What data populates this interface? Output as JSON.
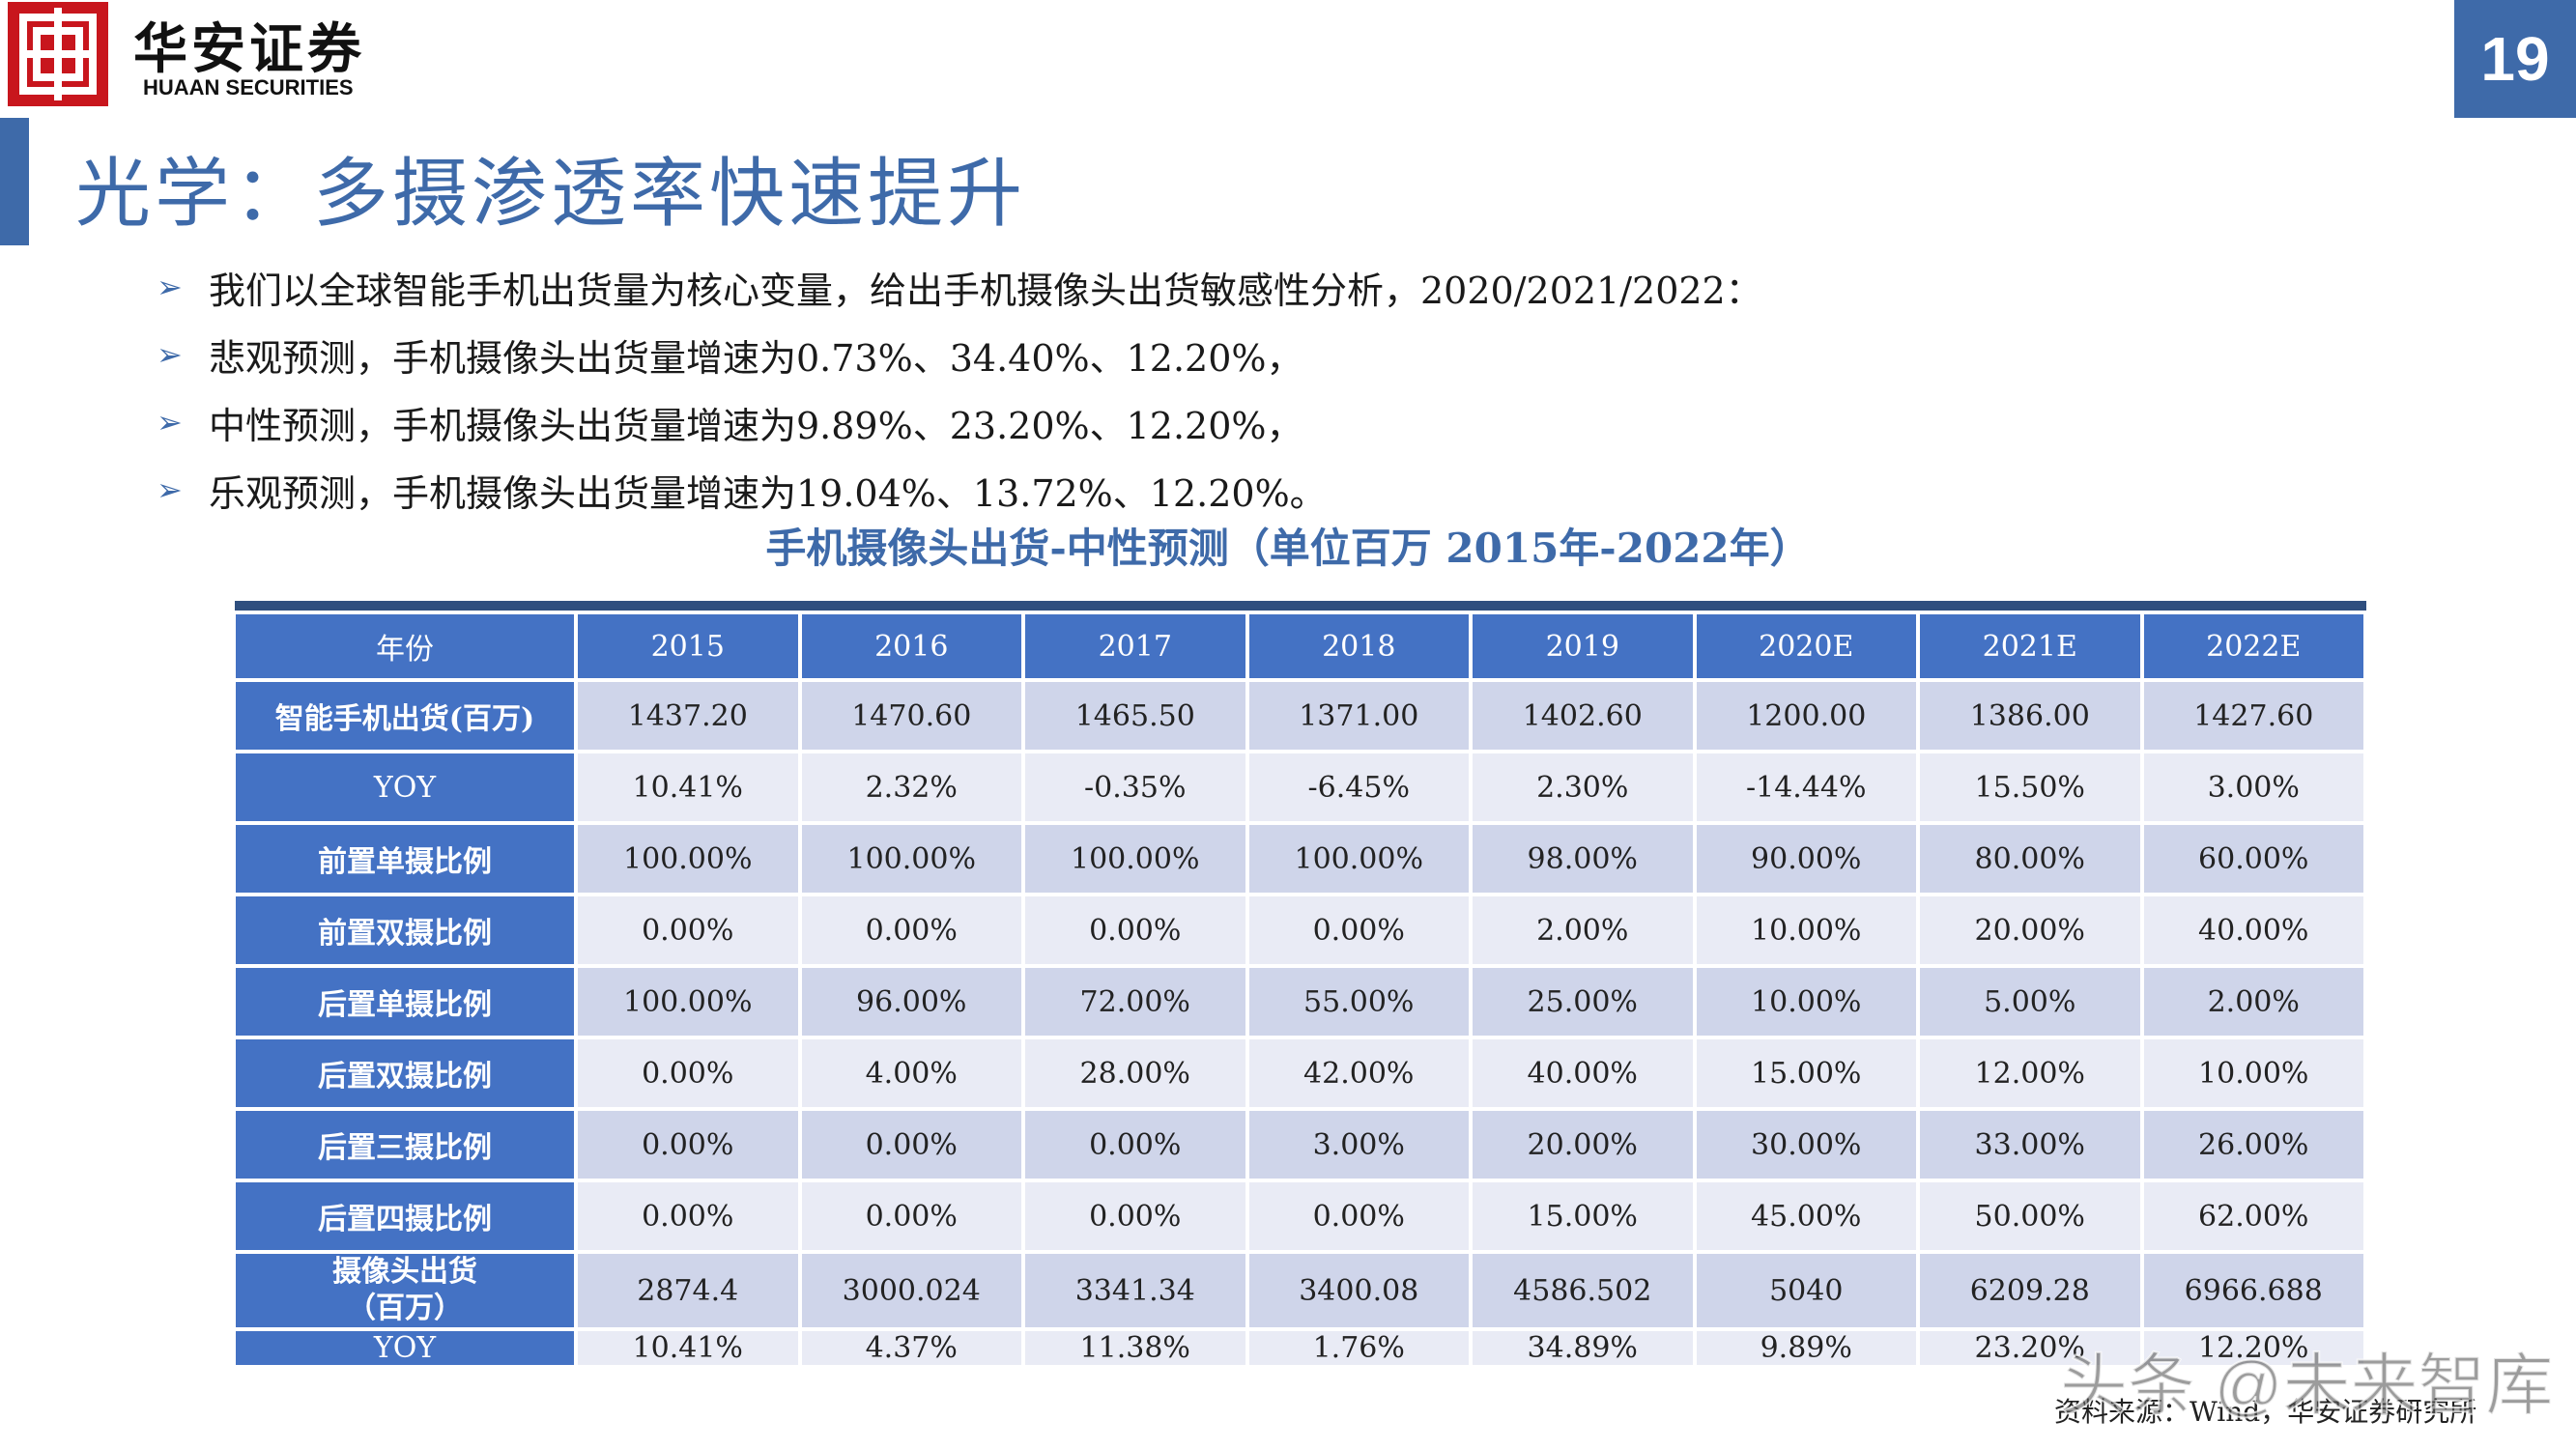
{
  "header": {
    "brand_cn": "华安证券",
    "brand_en": "HUAAN SECURITIES",
    "page_number": "19"
  },
  "title": "光学：多摄渗透率快速提升",
  "bullets": [
    "我们以全球智能手机出货量为核心变量，给出手机摄像头出货敏感性分析，2020/2021/2022：",
    "悲观预测，手机摄像头出货量增速为0.73%、34.40%、12.20%，",
    "中性预测，手机摄像头出货量增速为9.89%、23.20%、12.20%，",
    "乐观预测，手机摄像头出货量增速为19.04%、13.72%、12.20%。"
  ],
  "table": {
    "title": "手机摄像头出货-中性预测（单位百万 2015年-2022年）",
    "header_label": "年份",
    "years": [
      "2015",
      "2016",
      "2017",
      "2018",
      "2019",
      "2020E",
      "2021E",
      "2022E"
    ],
    "rows": [
      {
        "label": "智能手机出货(百万)",
        "values": [
          "1437.20",
          "1470.60",
          "1465.50",
          "1371.00",
          "1402.60",
          "1200.00",
          "1386.00",
          "1427.60"
        ]
      },
      {
        "label": "YOY",
        "values": [
          "10.41%",
          "2.32%",
          "-0.35%",
          "-6.45%",
          "2.30%",
          "-14.44%",
          "15.50%",
          "3.00%"
        ]
      },
      {
        "label": "前置单摄比例",
        "values": [
          "100.00%",
          "100.00%",
          "100.00%",
          "100.00%",
          "98.00%",
          "90.00%",
          "80.00%",
          "60.00%"
        ]
      },
      {
        "label": "前置双摄比例",
        "values": [
          "0.00%",
          "0.00%",
          "0.00%",
          "0.00%",
          "2.00%",
          "10.00%",
          "20.00%",
          "40.00%"
        ]
      },
      {
        "label": "后置单摄比例",
        "values": [
          "100.00%",
          "96.00%",
          "72.00%",
          "55.00%",
          "25.00%",
          "10.00%",
          "5.00%",
          "2.00%"
        ]
      },
      {
        "label": "后置双摄比例",
        "values": [
          "0.00%",
          "4.00%",
          "28.00%",
          "42.00%",
          "40.00%",
          "15.00%",
          "12.00%",
          "10.00%"
        ]
      },
      {
        "label": "后置三摄比例",
        "values": [
          "0.00%",
          "0.00%",
          "0.00%",
          "3.00%",
          "20.00%",
          "30.00%",
          "33.00%",
          "26.00%"
        ]
      },
      {
        "label": "后置四摄比例",
        "values": [
          "0.00%",
          "0.00%",
          "0.00%",
          "0.00%",
          "15.00%",
          "45.00%",
          "50.00%",
          "62.00%"
        ]
      },
      {
        "label_line1": "摄像头出货",
        "label_line2": "（百万）",
        "values": [
          "2874.4",
          "3000.024",
          "3341.34",
          "3400.08",
          "4586.502",
          "5040",
          "6209.28",
          "6966.688"
        ]
      },
      {
        "label": "YOY",
        "values": [
          "10.41%",
          "4.37%",
          "11.38%",
          "1.76%",
          "34.89%",
          "9.89%",
          "23.20%",
          "12.20%"
        ]
      }
    ]
  },
  "source": "资料来源：Wind，华安证券研究所",
  "watermark": "头条 @未来智库",
  "colors": {
    "brand_red": "#c8161d",
    "accent_blue": "#3e6aa9",
    "header_blue": "#4472c4",
    "row_light_a": "#cfd5ea",
    "row_light_b": "#e9ebf5"
  }
}
